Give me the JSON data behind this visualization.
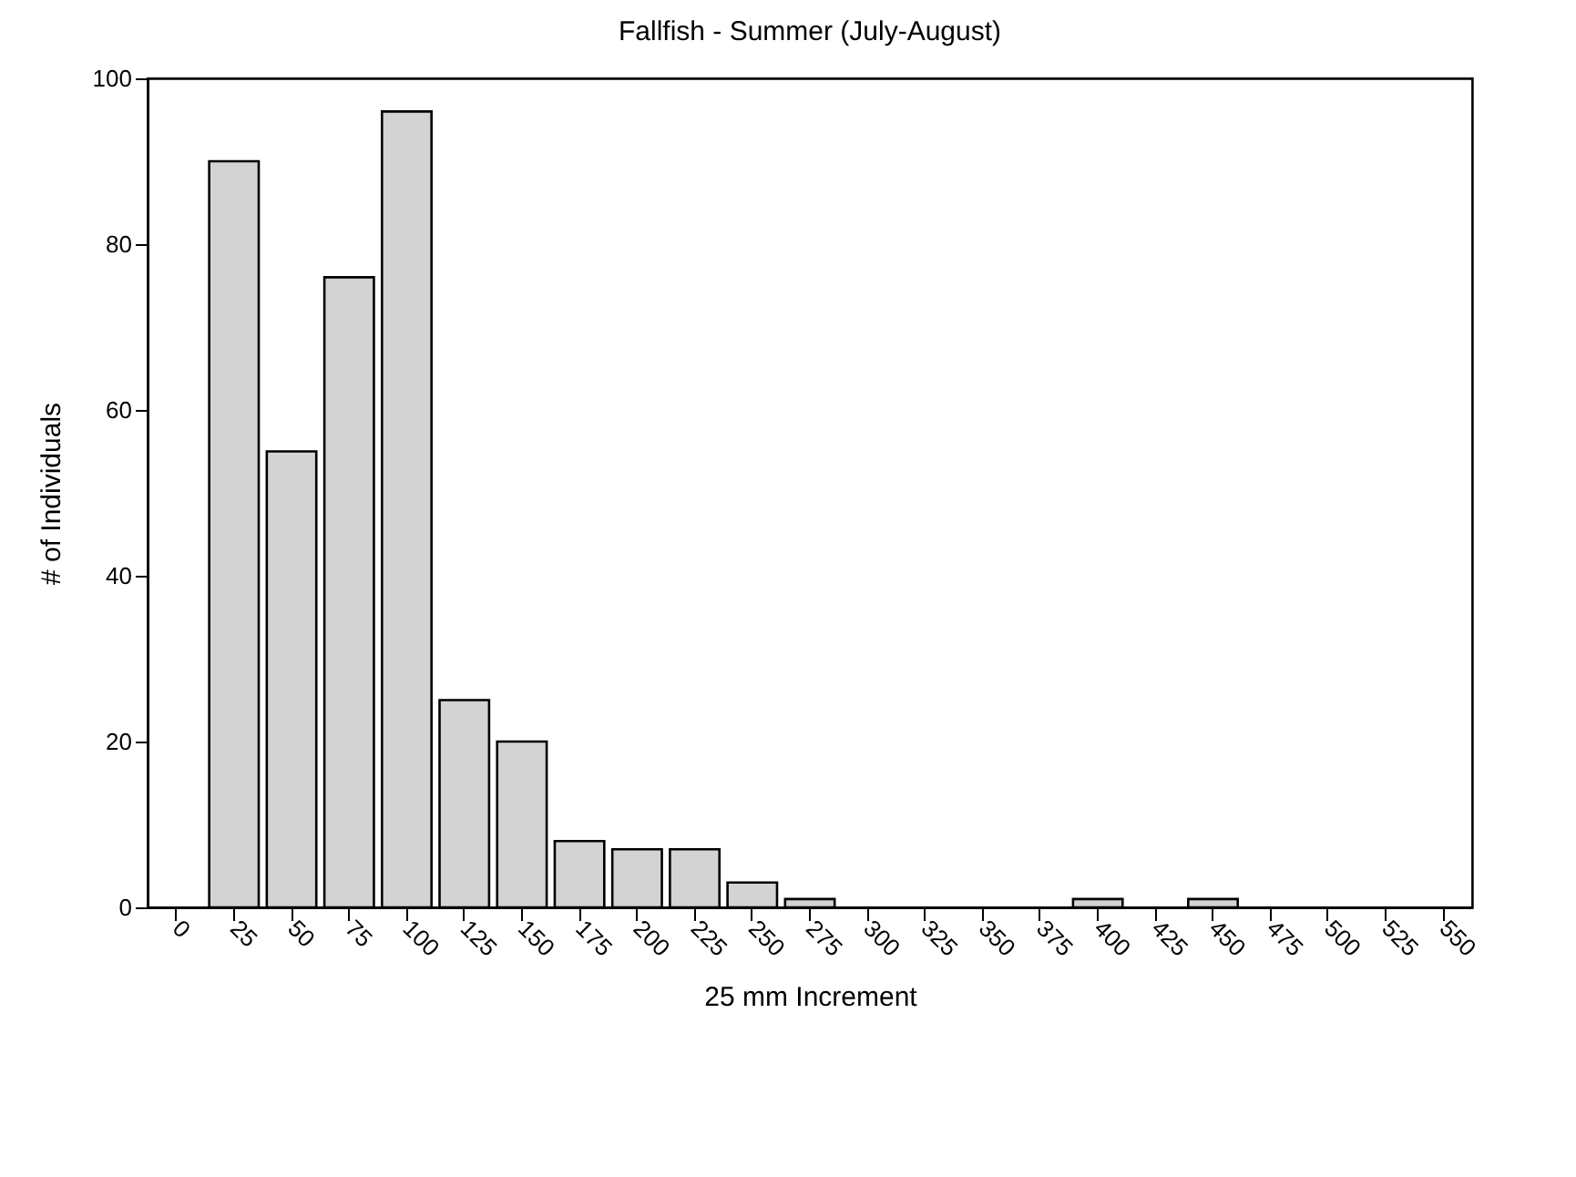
{
  "chart_data": {
    "type": "bar",
    "title": "Fallfish - Summer (July-August)",
    "xlabel": "25 mm Increment",
    "ylabel": "# of Individuals",
    "categories": [
      "0",
      "25",
      "50",
      "75",
      "100",
      "125",
      "150",
      "175",
      "200",
      "225",
      "250",
      "275",
      "300",
      "325",
      "350",
      "375",
      "400",
      "425",
      "450",
      "475",
      "500",
      "525",
      "550"
    ],
    "values": [
      0,
      90,
      55,
      76,
      96,
      25,
      20,
      8,
      7,
      7,
      3,
      1,
      0,
      0,
      0,
      0,
      1,
      0,
      1,
      0,
      0,
      0,
      0
    ],
    "color": "#d3d3d3",
    "ylim": [
      0,
      100
    ],
    "yticks": [
      0,
      20,
      40,
      60,
      80,
      100
    ],
    "grid": false
  }
}
